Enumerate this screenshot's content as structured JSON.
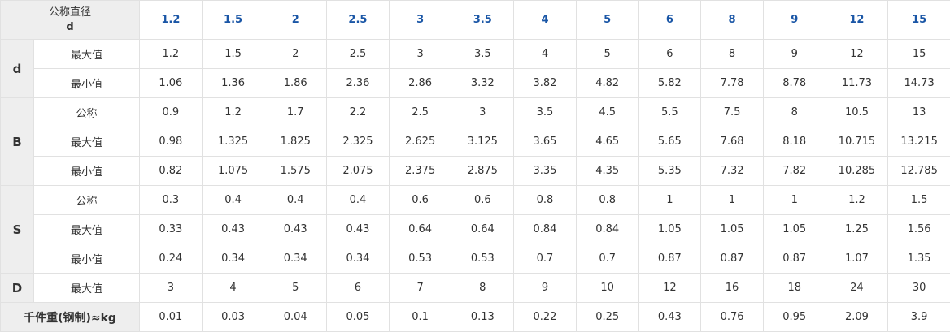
{
  "header": {
    "corner_line1": "公称直径",
    "corner_line2": "d",
    "sizes": [
      "1.2",
      "1.5",
      "2",
      "2.5",
      "3",
      "3.5",
      "4",
      "5",
      "6",
      "8",
      "9",
      "12",
      "15"
    ]
  },
  "groups": [
    {
      "symbol": "d",
      "rows": [
        {
          "label": "最大值",
          "values": [
            "1.2",
            "1.5",
            "2",
            "2.5",
            "3",
            "3.5",
            "4",
            "5",
            "6",
            "8",
            "9",
            "12",
            "15"
          ]
        },
        {
          "label": "最小值",
          "values": [
            "1.06",
            "1.36",
            "1.86",
            "2.36",
            "2.86",
            "3.32",
            "3.82",
            "4.82",
            "5.82",
            "7.78",
            "8.78",
            "11.73",
            "14.73"
          ]
        }
      ]
    },
    {
      "symbol": "B",
      "rows": [
        {
          "label": "公称",
          "values": [
            "0.9",
            "1.2",
            "1.7",
            "2.2",
            "2.5",
            "3",
            "3.5",
            "4.5",
            "5.5",
            "7.5",
            "8",
            "10.5",
            "13"
          ]
        },
        {
          "label": "最大值",
          "values": [
            "0.98",
            "1.325",
            "1.825",
            "2.325",
            "2.625",
            "3.125",
            "3.65",
            "4.65",
            "5.65",
            "7.68",
            "8.18",
            "10.715",
            "13.215"
          ]
        },
        {
          "label": "最小值",
          "values": [
            "0.82",
            "1.075",
            "1.575",
            "2.075",
            "2.375",
            "2.875",
            "3.35",
            "4.35",
            "5.35",
            "7.32",
            "7.82",
            "10.285",
            "12.785"
          ]
        }
      ]
    },
    {
      "symbol": "S",
      "rows": [
        {
          "label": "公称",
          "values": [
            "0.3",
            "0.4",
            "0.4",
            "0.4",
            "0.6",
            "0.6",
            "0.8",
            "0.8",
            "1",
            "1",
            "1",
            "1.2",
            "1.5"
          ]
        },
        {
          "label": "最大值",
          "values": [
            "0.33",
            "0.43",
            "0.43",
            "0.43",
            "0.64",
            "0.64",
            "0.84",
            "0.84",
            "1.05",
            "1.05",
            "1.05",
            "1.25",
            "1.56"
          ]
        },
        {
          "label": "最小值",
          "values": [
            "0.24",
            "0.34",
            "0.34",
            "0.34",
            "0.53",
            "0.53",
            "0.7",
            "0.7",
            "0.87",
            "0.87",
            "0.87",
            "1.07",
            "1.35"
          ]
        }
      ]
    },
    {
      "symbol": "D",
      "rows": [
        {
          "label": "最大值",
          "values": [
            "3",
            "4",
            "5",
            "6",
            "7",
            "8",
            "9",
            "10",
            "12",
            "16",
            "18",
            "24",
            "30"
          ]
        }
      ]
    }
  ],
  "weight": {
    "label": "千件重(钢制)≈kg",
    "values": [
      "0.01",
      "0.03",
      "0.04",
      "0.05",
      "0.1",
      "0.13",
      "0.22",
      "0.25",
      "0.43",
      "0.76",
      "0.95",
      "2.09",
      "3.9"
    ]
  }
}
